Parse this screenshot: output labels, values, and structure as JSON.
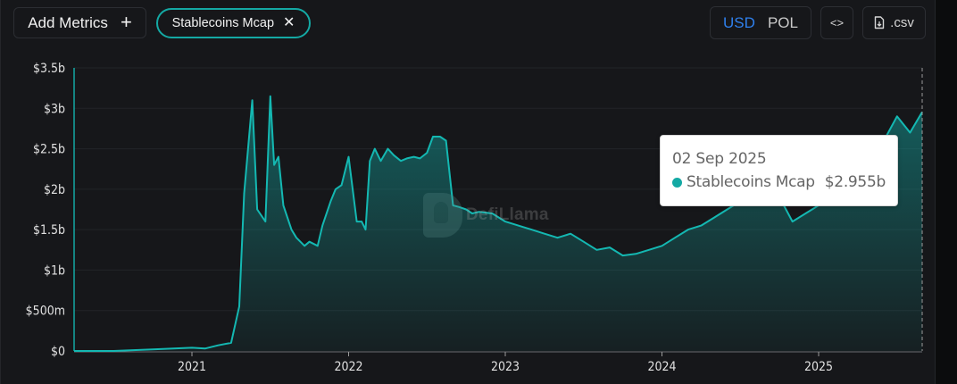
{
  "toolbar": {
    "add_metrics_label": "Add Metrics",
    "add_metrics_icon": "plus-icon",
    "metric_chip": {
      "label": "Stablecoins Mcap",
      "remove_icon": "close-icon",
      "color": "#14a9a4"
    },
    "denomination": {
      "options": [
        "USD",
        "POL"
      ],
      "selected": "USD",
      "selected_color": "#2f80ed"
    },
    "embed_label": "<>",
    "embed_icon": "code-icon",
    "csv_label": ".csv",
    "csv_icon": "file-download-icon"
  },
  "watermark": {
    "text": "DefiLlama"
  },
  "tooltip": {
    "date": "02 Sep 2025",
    "series_name": "Stablecoins Mcap",
    "value": "$2.955b",
    "dot_color": "#14a9a4"
  },
  "chart_data": {
    "type": "area",
    "title": "",
    "xlabel": "",
    "ylabel": "",
    "series_color": "#14a9a4",
    "y_tick_labels": [
      "$0",
      "$500m",
      "$1b",
      "$1.5b",
      "$2b",
      "$2.5b",
      "$3b",
      "$3.5b"
    ],
    "x_tick_labels": [
      "2021",
      "2022",
      "2023",
      "2024",
      "2025"
    ],
    "ylim": [
      0,
      3.5
    ],
    "y_unit": "billions USD",
    "grid": "horizontal",
    "legend": "none",
    "series": [
      {
        "name": "Stablecoins Mcap",
        "x": [
          "2020-04",
          "2020-07",
          "2020-10",
          "2021-01",
          "2021-02",
          "2021-03",
          "2021-04",
          "2021-04-20",
          "2021-05",
          "2021-05-20",
          "2021-06",
          "2021-06-20",
          "2021-07",
          "2021-07-10",
          "2021-07-20",
          "2021-08",
          "2021-08-20",
          "2021-09",
          "2021-09-20",
          "2021-10",
          "2021-10-20",
          "2021-11",
          "2021-11-20",
          "2021-12",
          "2021-12-15",
          "2022-01",
          "2022-01-20",
          "2022-02",
          "2022-02-10",
          "2022-02-20",
          "2022-03",
          "2022-03-15",
          "2022-04",
          "2022-04-15",
          "2022-05",
          "2022-05-15",
          "2022-06",
          "2022-06-15",
          "2022-07",
          "2022-07-15",
          "2022-08",
          "2022-08-15",
          "2022-09",
          "2022-09-15",
          "2022-10",
          "2022-10-15",
          "2022-11",
          "2022-12",
          "2023-01",
          "2023-02",
          "2023-03",
          "2023-04",
          "2023-05",
          "2023-06",
          "2023-07",
          "2023-08",
          "2023-09",
          "2023-10",
          "2023-11",
          "2023-12",
          "2024-01",
          "2024-02",
          "2024-03",
          "2024-04",
          "2024-05",
          "2024-06",
          "2024-07",
          "2024-08",
          "2024-09",
          "2024-10",
          "2024-11",
          "2024-12",
          "2025-01",
          "2025-02",
          "2025-03",
          "2025-04",
          "2025-05",
          "2025-06",
          "2025-07",
          "2025-08",
          "2025-09-02"
        ],
        "values": [
          0.0,
          0.0,
          0.02,
          0.04,
          0.03,
          0.07,
          0.1,
          0.55,
          1.95,
          3.1,
          1.75,
          1.6,
          3.15,
          2.3,
          2.4,
          1.8,
          1.5,
          1.4,
          1.3,
          1.35,
          1.3,
          1.55,
          1.85,
          2.0,
          2.05,
          2.4,
          1.6,
          1.6,
          1.5,
          2.35,
          2.5,
          2.35,
          2.5,
          2.42,
          2.35,
          2.38,
          2.4,
          2.38,
          2.45,
          2.65,
          2.65,
          2.6,
          1.8,
          1.78,
          1.75,
          1.7,
          1.72,
          1.7,
          1.6,
          1.55,
          1.5,
          1.45,
          1.4,
          1.45,
          1.35,
          1.25,
          1.28,
          1.18,
          1.2,
          1.25,
          1.3,
          1.4,
          1.5,
          1.55,
          1.65,
          1.75,
          1.85,
          1.95,
          2.05,
          1.9,
          1.6,
          1.7,
          1.8,
          2.0,
          2.1,
          2.2,
          2.4,
          2.6,
          2.9,
          2.7,
          2.955
        ]
      }
    ]
  }
}
